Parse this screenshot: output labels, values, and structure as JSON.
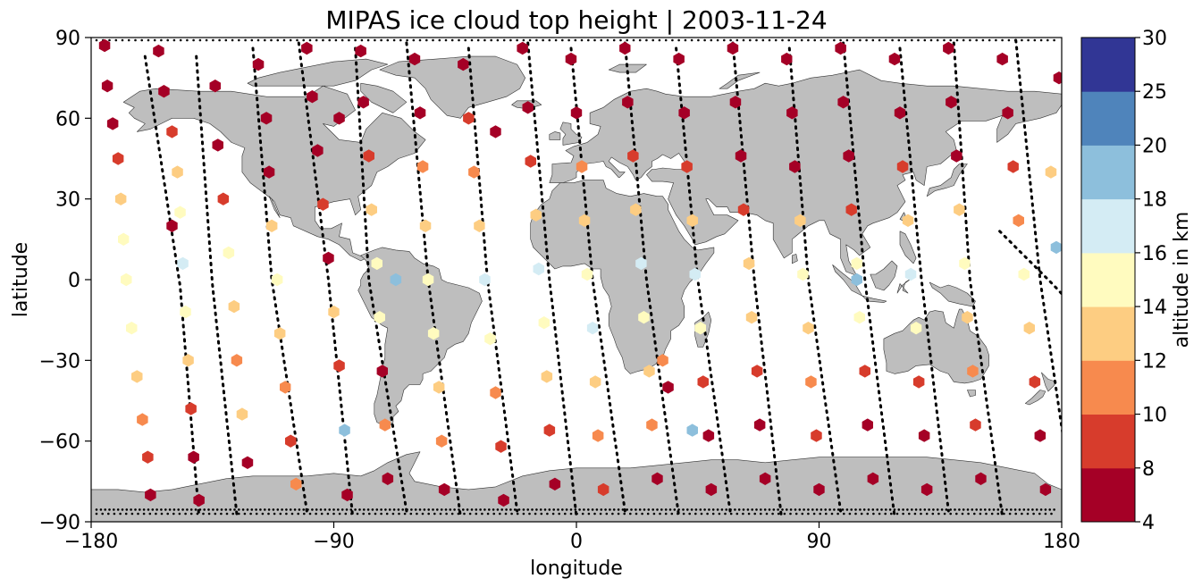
{
  "chart_data": {
    "type": "scatter",
    "title": "MIPAS ice cloud top height | 2003-11-24",
    "xlabel": "longitude",
    "ylabel": "latitude",
    "xlim": [
      -180,
      180
    ],
    "ylim": [
      -90,
      90
    ],
    "x_ticks": [
      -180,
      -90,
      0,
      90,
      180
    ],
    "x_tick_labels": [
      "−180",
      "−90",
      "0",
      "90",
      "180"
    ],
    "y_ticks": [
      -90,
      -60,
      -30,
      0,
      30,
      60,
      90
    ],
    "y_tick_labels": [
      "−90",
      "−60",
      "−30",
      "0",
      "30",
      "60",
      "90"
    ],
    "grid": false,
    "marker": "hexagon",
    "basemap": "world coastlines, land filled grey",
    "land_color": "#bebebe",
    "orbit_track_style": "black dotted",
    "colorbar": {
      "label": "altitude in km",
      "boundaries": [
        4,
        8,
        10,
        12,
        14,
        16,
        18,
        20,
        25,
        30
      ],
      "tick_labels": [
        "4",
        "8",
        "10",
        "12",
        "14",
        "16",
        "18",
        "20",
        "25",
        "30"
      ],
      "colors": [
        "#a50026",
        "#d73027",
        "#f46d43",
        "#fdae61",
        "#fee090",
        "#e0f3f8",
        "#abd9e9",
        "#74add1",
        "#313695"
      ],
      "display_colors": [
        "#a50026",
        "#d73c2c",
        "#f78a4e",
        "#fdcd82",
        "#fffbbf",
        "#d4ecf4",
        "#8dbfdc",
        "#4f84bb",
        "#313695"
      ]
    },
    "orbits": [
      {
        "n": 18,
        "s": -20,
        "lon_n": 157,
        "lon_eq": 176,
        "lon_s": 194
      },
      {
        "n": 89,
        "s": -89,
        "lon_n": 163,
        "lon_eq": 172,
        "lon_s": 185
      },
      {
        "n": 83,
        "s": -88,
        "lon_n": -160,
        "lon_eq": -147,
        "lon_s": -140
      },
      {
        "n": 83,
        "s": -87,
        "lon_n": -141,
        "lon_eq": -135,
        "lon_s": -126
      },
      {
        "n": 86,
        "s": -86,
        "lon_n": -120,
        "lon_eq": -113,
        "lon_s": -100
      },
      {
        "n": 88,
        "s": -88,
        "lon_n": -103,
        "lon_eq": -92,
        "lon_s": -83
      },
      {
        "n": 86,
        "s": -86,
        "lon_n": -82,
        "lon_eq": -77,
        "lon_s": -63
      },
      {
        "n": 88,
        "s": -88,
        "lon_n": -63,
        "lon_eq": -55,
        "lon_s": -43
      },
      {
        "n": 86,
        "s": -86,
        "lon_n": -40,
        "lon_eq": -33,
        "lon_s": -22
      },
      {
        "n": 88,
        "s": -88,
        "lon_n": -18,
        "lon_eq": -10,
        "lon_s": 0
      },
      {
        "n": 86,
        "s": -86,
        "lon_n": -2,
        "lon_eq": 6,
        "lon_s": 18
      },
      {
        "n": 88,
        "s": -88,
        "lon_n": 18,
        "lon_eq": 26,
        "lon_s": 38
      },
      {
        "n": 86,
        "s": -86,
        "lon_n": 37,
        "lon_eq": 45,
        "lon_s": 57
      },
      {
        "n": 88,
        "s": -88,
        "lon_n": 58,
        "lon_eq": 66,
        "lon_s": 76
      },
      {
        "n": 86,
        "s": -86,
        "lon_n": 79,
        "lon_eq": 86,
        "lon_s": 98
      },
      {
        "n": 88,
        "s": -88,
        "lon_n": 99,
        "lon_eq": 107,
        "lon_s": 118
      },
      {
        "n": 86,
        "s": -86,
        "lon_n": 120,
        "lon_eq": 128,
        "lon_s": 138
      },
      {
        "n": 88,
        "s": -88,
        "lon_n": 140,
        "lon_eq": 146,
        "lon_s": 158
      }
    ],
    "points": [
      {
        "lon": -175,
        "lat": 87,
        "alt": 7.0
      },
      {
        "lon": -174,
        "lat": 72,
        "alt": 6.0
      },
      {
        "lon": -172,
        "lat": 58,
        "alt": 7.0
      },
      {
        "lon": -170,
        "lat": 45,
        "alt": 9.0
      },
      {
        "lon": -169,
        "lat": 30,
        "alt": 13.0
      },
      {
        "lon": -168,
        "lat": 15,
        "alt": 14.5
      },
      {
        "lon": -167,
        "lat": 0,
        "alt": 15.0
      },
      {
        "lon": -165,
        "lat": -18,
        "alt": 14.5
      },
      {
        "lon": -163,
        "lat": -36,
        "alt": 13.0
      },
      {
        "lon": -161,
        "lat": -52,
        "alt": 11.0
      },
      {
        "lon": -159,
        "lat": -66,
        "alt": 9.0
      },
      {
        "lon": -158,
        "lat": -80,
        "alt": 7.0
      },
      {
        "lon": -155,
        "lat": 85,
        "alt": 7.0
      },
      {
        "lon": -153,
        "lat": 70,
        "alt": 6.0
      },
      {
        "lon": -150,
        "lat": 55,
        "alt": 9.0
      },
      {
        "lon": -148,
        "lat": 40,
        "alt": 13.0
      },
      {
        "lon": -147,
        "lat": 25,
        "alt": 14.5
      },
      {
        "lon": -146,
        "lat": 6,
        "alt": 17.0
      },
      {
        "lon": -145,
        "lat": -12,
        "alt": 14.5
      },
      {
        "lon": -144,
        "lat": -30,
        "alt": 13.0
      },
      {
        "lon": -143,
        "lat": -48,
        "alt": 9.0
      },
      {
        "lon": -142,
        "lat": -66,
        "alt": 7.0
      },
      {
        "lon": -140,
        "lat": -82,
        "alt": 6.0
      },
      {
        "lon": -150,
        "lat": 20,
        "alt": 7.0
      },
      {
        "lon": -134,
        "lat": 72,
        "alt": 7.0
      },
      {
        "lon": -133,
        "lat": 50,
        "alt": 7.0
      },
      {
        "lon": -131,
        "lat": 30,
        "alt": 9.0
      },
      {
        "lon": -129,
        "lat": 10,
        "alt": 14.5
      },
      {
        "lon": -127,
        "lat": -10,
        "alt": 13.0
      },
      {
        "lon": -126,
        "lat": -30,
        "alt": 11.0
      },
      {
        "lon": -124,
        "lat": -50,
        "alt": 13.0
      },
      {
        "lon": -122,
        "lat": -68,
        "alt": 7.0
      },
      {
        "lon": -118,
        "lat": 80,
        "alt": 7.0
      },
      {
        "lon": -115,
        "lat": 60,
        "alt": 7.0
      },
      {
        "lon": -114,
        "lat": 40,
        "alt": 7.0
      },
      {
        "lon": -113,
        "lat": 20,
        "alt": 13.0
      },
      {
        "lon": -111,
        "lat": 0,
        "alt": 14.5
      },
      {
        "lon": -110,
        "lat": -20,
        "alt": 13.0
      },
      {
        "lon": -108,
        "lat": -40,
        "alt": 11.0
      },
      {
        "lon": -106,
        "lat": -60,
        "alt": 9.0
      },
      {
        "lon": -104,
        "lat": -76,
        "alt": 11.0
      },
      {
        "lon": -100,
        "lat": 86,
        "alt": 7.0
      },
      {
        "lon": -98,
        "lat": 68,
        "alt": 6.0
      },
      {
        "lon": -96,
        "lat": 48,
        "alt": 7.0
      },
      {
        "lon": -94,
        "lat": 28,
        "alt": 9.0
      },
      {
        "lon": -92,
        "lat": 8,
        "alt": 7.0
      },
      {
        "lon": -90,
        "lat": -12,
        "alt": 13.0
      },
      {
        "lon": -88,
        "lat": -32,
        "alt": 9.0
      },
      {
        "lon": -86,
        "lat": -56,
        "alt": 19.0
      },
      {
        "lon": -85,
        "lat": -80,
        "alt": 7.0
      },
      {
        "lon": -88,
        "lat": 60,
        "alt": 6.0
      },
      {
        "lon": -80,
        "lat": 85,
        "alt": 7.0
      },
      {
        "lon": -79,
        "lat": 66,
        "alt": 7.0
      },
      {
        "lon": -77,
        "lat": 46,
        "alt": 9.0
      },
      {
        "lon": -76,
        "lat": 26,
        "alt": 13.0
      },
      {
        "lon": -74,
        "lat": 6,
        "alt": 14.5
      },
      {
        "lon": -73,
        "lat": -14,
        "alt": 14.5
      },
      {
        "lon": -72,
        "lat": -34,
        "alt": 7.0
      },
      {
        "lon": -71,
        "lat": -54,
        "alt": 11.0
      },
      {
        "lon": -70,
        "lat": -74,
        "alt": 7.0
      },
      {
        "lon": -67,
        "lat": 0,
        "alt": 19.0
      },
      {
        "lon": -60,
        "lat": 82,
        "alt": 7.0
      },
      {
        "lon": -58,
        "lat": 62,
        "alt": 7.0
      },
      {
        "lon": -57,
        "lat": 42,
        "alt": 11.0
      },
      {
        "lon": -56,
        "lat": 20,
        "alt": 13.0
      },
      {
        "lon": -55,
        "lat": 0,
        "alt": 15.0
      },
      {
        "lon": -53,
        "lat": -20,
        "alt": 15.0
      },
      {
        "lon": -51,
        "lat": -40,
        "alt": 13.0
      },
      {
        "lon": -50,
        "lat": -60,
        "alt": 11.0
      },
      {
        "lon": -49,
        "lat": -78,
        "alt": 7.0
      },
      {
        "lon": -42,
        "lat": 80,
        "alt": 7.0
      },
      {
        "lon": -40,
        "lat": 60,
        "alt": 9.0
      },
      {
        "lon": -38,
        "lat": 40,
        "alt": 11.0
      },
      {
        "lon": -36,
        "lat": 20,
        "alt": 13.0
      },
      {
        "lon": -34,
        "lat": 0,
        "alt": 17.0
      },
      {
        "lon": -32,
        "lat": -22,
        "alt": 15.0
      },
      {
        "lon": -30,
        "lat": -42,
        "alt": 11.0
      },
      {
        "lon": -28,
        "lat": -62,
        "alt": 9.0
      },
      {
        "lon": -27,
        "lat": -82,
        "alt": 7.0
      },
      {
        "lon": -30,
        "lat": 55,
        "alt": 7.0
      },
      {
        "lon": -20,
        "lat": 86,
        "alt": 7.0
      },
      {
        "lon": -18,
        "lat": 64,
        "alt": 6.0
      },
      {
        "lon": -17,
        "lat": 44,
        "alt": 9.0
      },
      {
        "lon": -15,
        "lat": 24,
        "alt": 13.0
      },
      {
        "lon": -14,
        "lat": 4,
        "alt": 17.0
      },
      {
        "lon": -12,
        "lat": -16,
        "alt": 15.0
      },
      {
        "lon": -11,
        "lat": -36,
        "alt": 13.0
      },
      {
        "lon": -10,
        "lat": -56,
        "alt": 9.0
      },
      {
        "lon": -8,
        "lat": -76,
        "alt": 7.0
      },
      {
        "lon": -2,
        "lat": 82,
        "alt": 7.0
      },
      {
        "lon": 0,
        "lat": 62,
        "alt": 7.0
      },
      {
        "lon": 2,
        "lat": 42,
        "alt": 11.0
      },
      {
        "lon": 3,
        "lat": 22,
        "alt": 13.0
      },
      {
        "lon": 4,
        "lat": 2,
        "alt": 15.0
      },
      {
        "lon": 6,
        "lat": -18,
        "alt": 17.0
      },
      {
        "lon": 7,
        "lat": -38,
        "alt": 13.0
      },
      {
        "lon": 8,
        "lat": -58,
        "alt": 11.0
      },
      {
        "lon": 10,
        "lat": -78,
        "alt": 9.0
      },
      {
        "lon": 18,
        "lat": 86,
        "alt": 7.0
      },
      {
        "lon": 19,
        "lat": 66,
        "alt": 7.0
      },
      {
        "lon": 21,
        "lat": 46,
        "alt": 9.0
      },
      {
        "lon": 22,
        "lat": 26,
        "alt": 13.0
      },
      {
        "lon": 24,
        "lat": 6,
        "alt": 17.0
      },
      {
        "lon": 25,
        "lat": -14,
        "alt": 15.0
      },
      {
        "lon": 27,
        "lat": -34,
        "alt": 13.0
      },
      {
        "lon": 28,
        "lat": -54,
        "alt": 11.0
      },
      {
        "lon": 30,
        "lat": -74,
        "alt": 7.0
      },
      {
        "lon": 32,
        "lat": -30,
        "alt": 11.0
      },
      {
        "lon": 34,
        "lat": -40,
        "alt": 7.0
      },
      {
        "lon": 38,
        "lat": 82,
        "alt": 7.0
      },
      {
        "lon": 40,
        "lat": 62,
        "alt": 7.0
      },
      {
        "lon": 41,
        "lat": 42,
        "alt": 9.0
      },
      {
        "lon": 43,
        "lat": 22,
        "alt": 13.0
      },
      {
        "lon": 44,
        "lat": 2,
        "alt": 17.0
      },
      {
        "lon": 46,
        "lat": -18,
        "alt": 14.5
      },
      {
        "lon": 47,
        "lat": -38,
        "alt": 9.0
      },
      {
        "lon": 49,
        "lat": -58,
        "alt": 7.0
      },
      {
        "lon": 50,
        "lat": -78,
        "alt": 6.0
      },
      {
        "lon": 43,
        "lat": -56,
        "alt": 19.0
      },
      {
        "lon": 58,
        "lat": 86,
        "alt": 7.0
      },
      {
        "lon": 59,
        "lat": 66,
        "alt": 6.0
      },
      {
        "lon": 61,
        "lat": 46,
        "alt": 7.0
      },
      {
        "lon": 62,
        "lat": 26,
        "alt": 9.0
      },
      {
        "lon": 64,
        "lat": 6,
        "alt": 13.0
      },
      {
        "lon": 65,
        "lat": -14,
        "alt": 13.0
      },
      {
        "lon": 67,
        "lat": -34,
        "alt": 9.0
      },
      {
        "lon": 68,
        "lat": -54,
        "alt": 7.0
      },
      {
        "lon": 70,
        "lat": -74,
        "alt": 7.0
      },
      {
        "lon": 78,
        "lat": 82,
        "alt": 7.0
      },
      {
        "lon": 80,
        "lat": 62,
        "alt": 7.0
      },
      {
        "lon": 81,
        "lat": 42,
        "alt": 7.0
      },
      {
        "lon": 83,
        "lat": 22,
        "alt": 13.0
      },
      {
        "lon": 84,
        "lat": 2,
        "alt": 14.5
      },
      {
        "lon": 86,
        "lat": -18,
        "alt": 13.0
      },
      {
        "lon": 87,
        "lat": -38,
        "alt": 11.0
      },
      {
        "lon": 89,
        "lat": -58,
        "alt": 9.0
      },
      {
        "lon": 90,
        "lat": -78,
        "alt": 7.0
      },
      {
        "lon": 98,
        "lat": 86,
        "alt": 7.0
      },
      {
        "lon": 99,
        "lat": 66,
        "alt": 6.0
      },
      {
        "lon": 101,
        "lat": 46,
        "alt": 7.0
      },
      {
        "lon": 102,
        "lat": 26,
        "alt": 9.0
      },
      {
        "lon": 104,
        "lat": 6,
        "alt": 14.5
      },
      {
        "lon": 105,
        "lat": -14,
        "alt": 15.0
      },
      {
        "lon": 107,
        "lat": -34,
        "alt": 9.0
      },
      {
        "lon": 108,
        "lat": -54,
        "alt": 7.0
      },
      {
        "lon": 110,
        "lat": -74,
        "alt": 7.0
      },
      {
        "lon": 104,
        "lat": 0,
        "alt": 19.0
      },
      {
        "lon": 118,
        "lat": 82,
        "alt": 7.0
      },
      {
        "lon": 120,
        "lat": 62,
        "alt": 7.0
      },
      {
        "lon": 121,
        "lat": 42,
        "alt": 9.0
      },
      {
        "lon": 123,
        "lat": 22,
        "alt": 13.0
      },
      {
        "lon": 124,
        "lat": 2,
        "alt": 17.0
      },
      {
        "lon": 126,
        "lat": -18,
        "alt": 14.5
      },
      {
        "lon": 127,
        "lat": -38,
        "alt": 9.0
      },
      {
        "lon": 129,
        "lat": -58,
        "alt": 7.0
      },
      {
        "lon": 130,
        "lat": -78,
        "alt": 6.0
      },
      {
        "lon": 138,
        "lat": 86,
        "alt": 7.0
      },
      {
        "lon": 139,
        "lat": 66,
        "alt": 7.0
      },
      {
        "lon": 141,
        "lat": 46,
        "alt": 7.0
      },
      {
        "lon": 142,
        "lat": 26,
        "alt": 13.0
      },
      {
        "lon": 144,
        "lat": 6,
        "alt": 14.5
      },
      {
        "lon": 145,
        "lat": -14,
        "alt": 13.0
      },
      {
        "lon": 147,
        "lat": -34,
        "alt": 11.0
      },
      {
        "lon": 148,
        "lat": -54,
        "alt": 9.0
      },
      {
        "lon": 150,
        "lat": -74,
        "alt": 7.0
      },
      {
        "lon": 158,
        "lat": 82,
        "alt": 7.0
      },
      {
        "lon": 160,
        "lat": 62,
        "alt": 7.0
      },
      {
        "lon": 162,
        "lat": 42,
        "alt": 9.0
      },
      {
        "lon": 164,
        "lat": 22,
        "alt": 11.0
      },
      {
        "lon": 166,
        "lat": 2,
        "alt": 14.5
      },
      {
        "lon": 168,
        "lat": -18,
        "alt": 13.0
      },
      {
        "lon": 170,
        "lat": -38,
        "alt": 9.0
      },
      {
        "lon": 172,
        "lat": -58,
        "alt": 7.0
      },
      {
        "lon": 174,
        "lat": -78,
        "alt": 7.0
      },
      {
        "lon": 178,
        "lat": 12,
        "alt": 19.0
      },
      {
        "lon": 176,
        "lat": 40,
        "alt": 13.0
      },
      {
        "lon": 179,
        "lat": 75,
        "alt": 7.0
      }
    ]
  }
}
